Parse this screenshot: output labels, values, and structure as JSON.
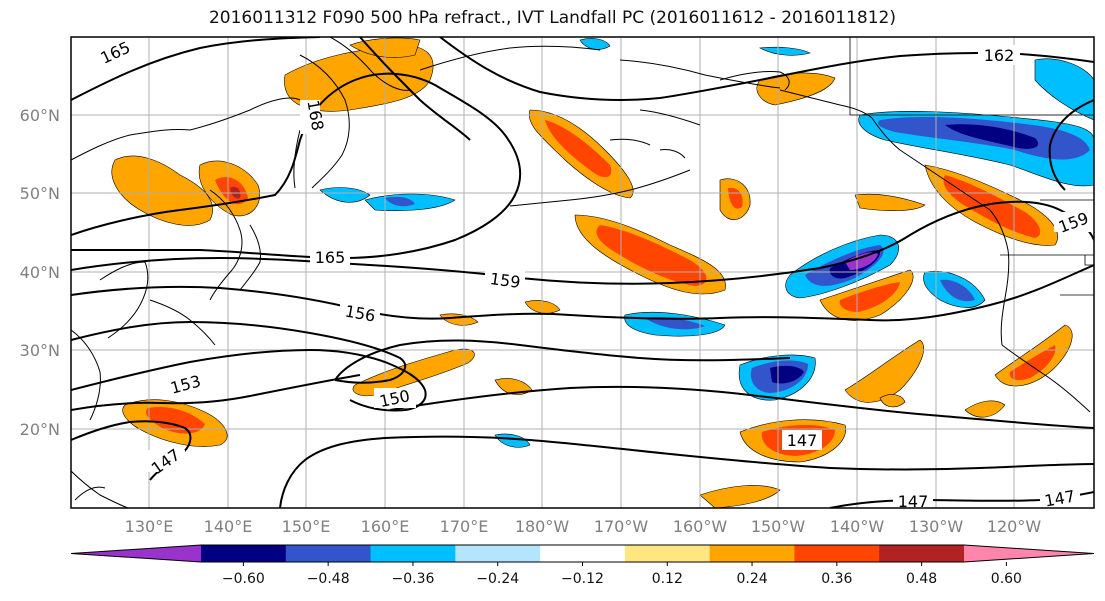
{
  "title": "2016011312 F090 500 hPa refract., IVT Landfall PC (2016011612 - 2016011812)",
  "lat_ticks": [
    "60°N",
    "50°N",
    "40°N",
    "30°N",
    "20°N"
  ],
  "lon_ticks": [
    "130°E",
    "140°E",
    "150°E",
    "160°E",
    "170°E",
    "180°W",
    "170°W",
    "160°W",
    "150°W",
    "140°W",
    "130°W",
    "120°W"
  ],
  "colorbar": {
    "levels": [
      "−0.60",
      "−0.48",
      "−0.36",
      "−0.24",
      "−0.12",
      "0.12",
      "0.24",
      "0.36",
      "0.48",
      "0.60"
    ],
    "colors": [
      "#9933cc",
      "#000080",
      "#3355cc",
      "#00bfff",
      "#b3e5ff",
      "#ffffff",
      "#ffe680",
      "#ffa500",
      "#ff4500",
      "#b22222",
      "#ff85ad"
    ]
  },
  "contour_labels": [
    "165",
    "168",
    "165",
    "162",
    "159",
    "159",
    "156",
    "153",
    "150",
    "147",
    "147",
    "147",
    "147"
  ]
}
